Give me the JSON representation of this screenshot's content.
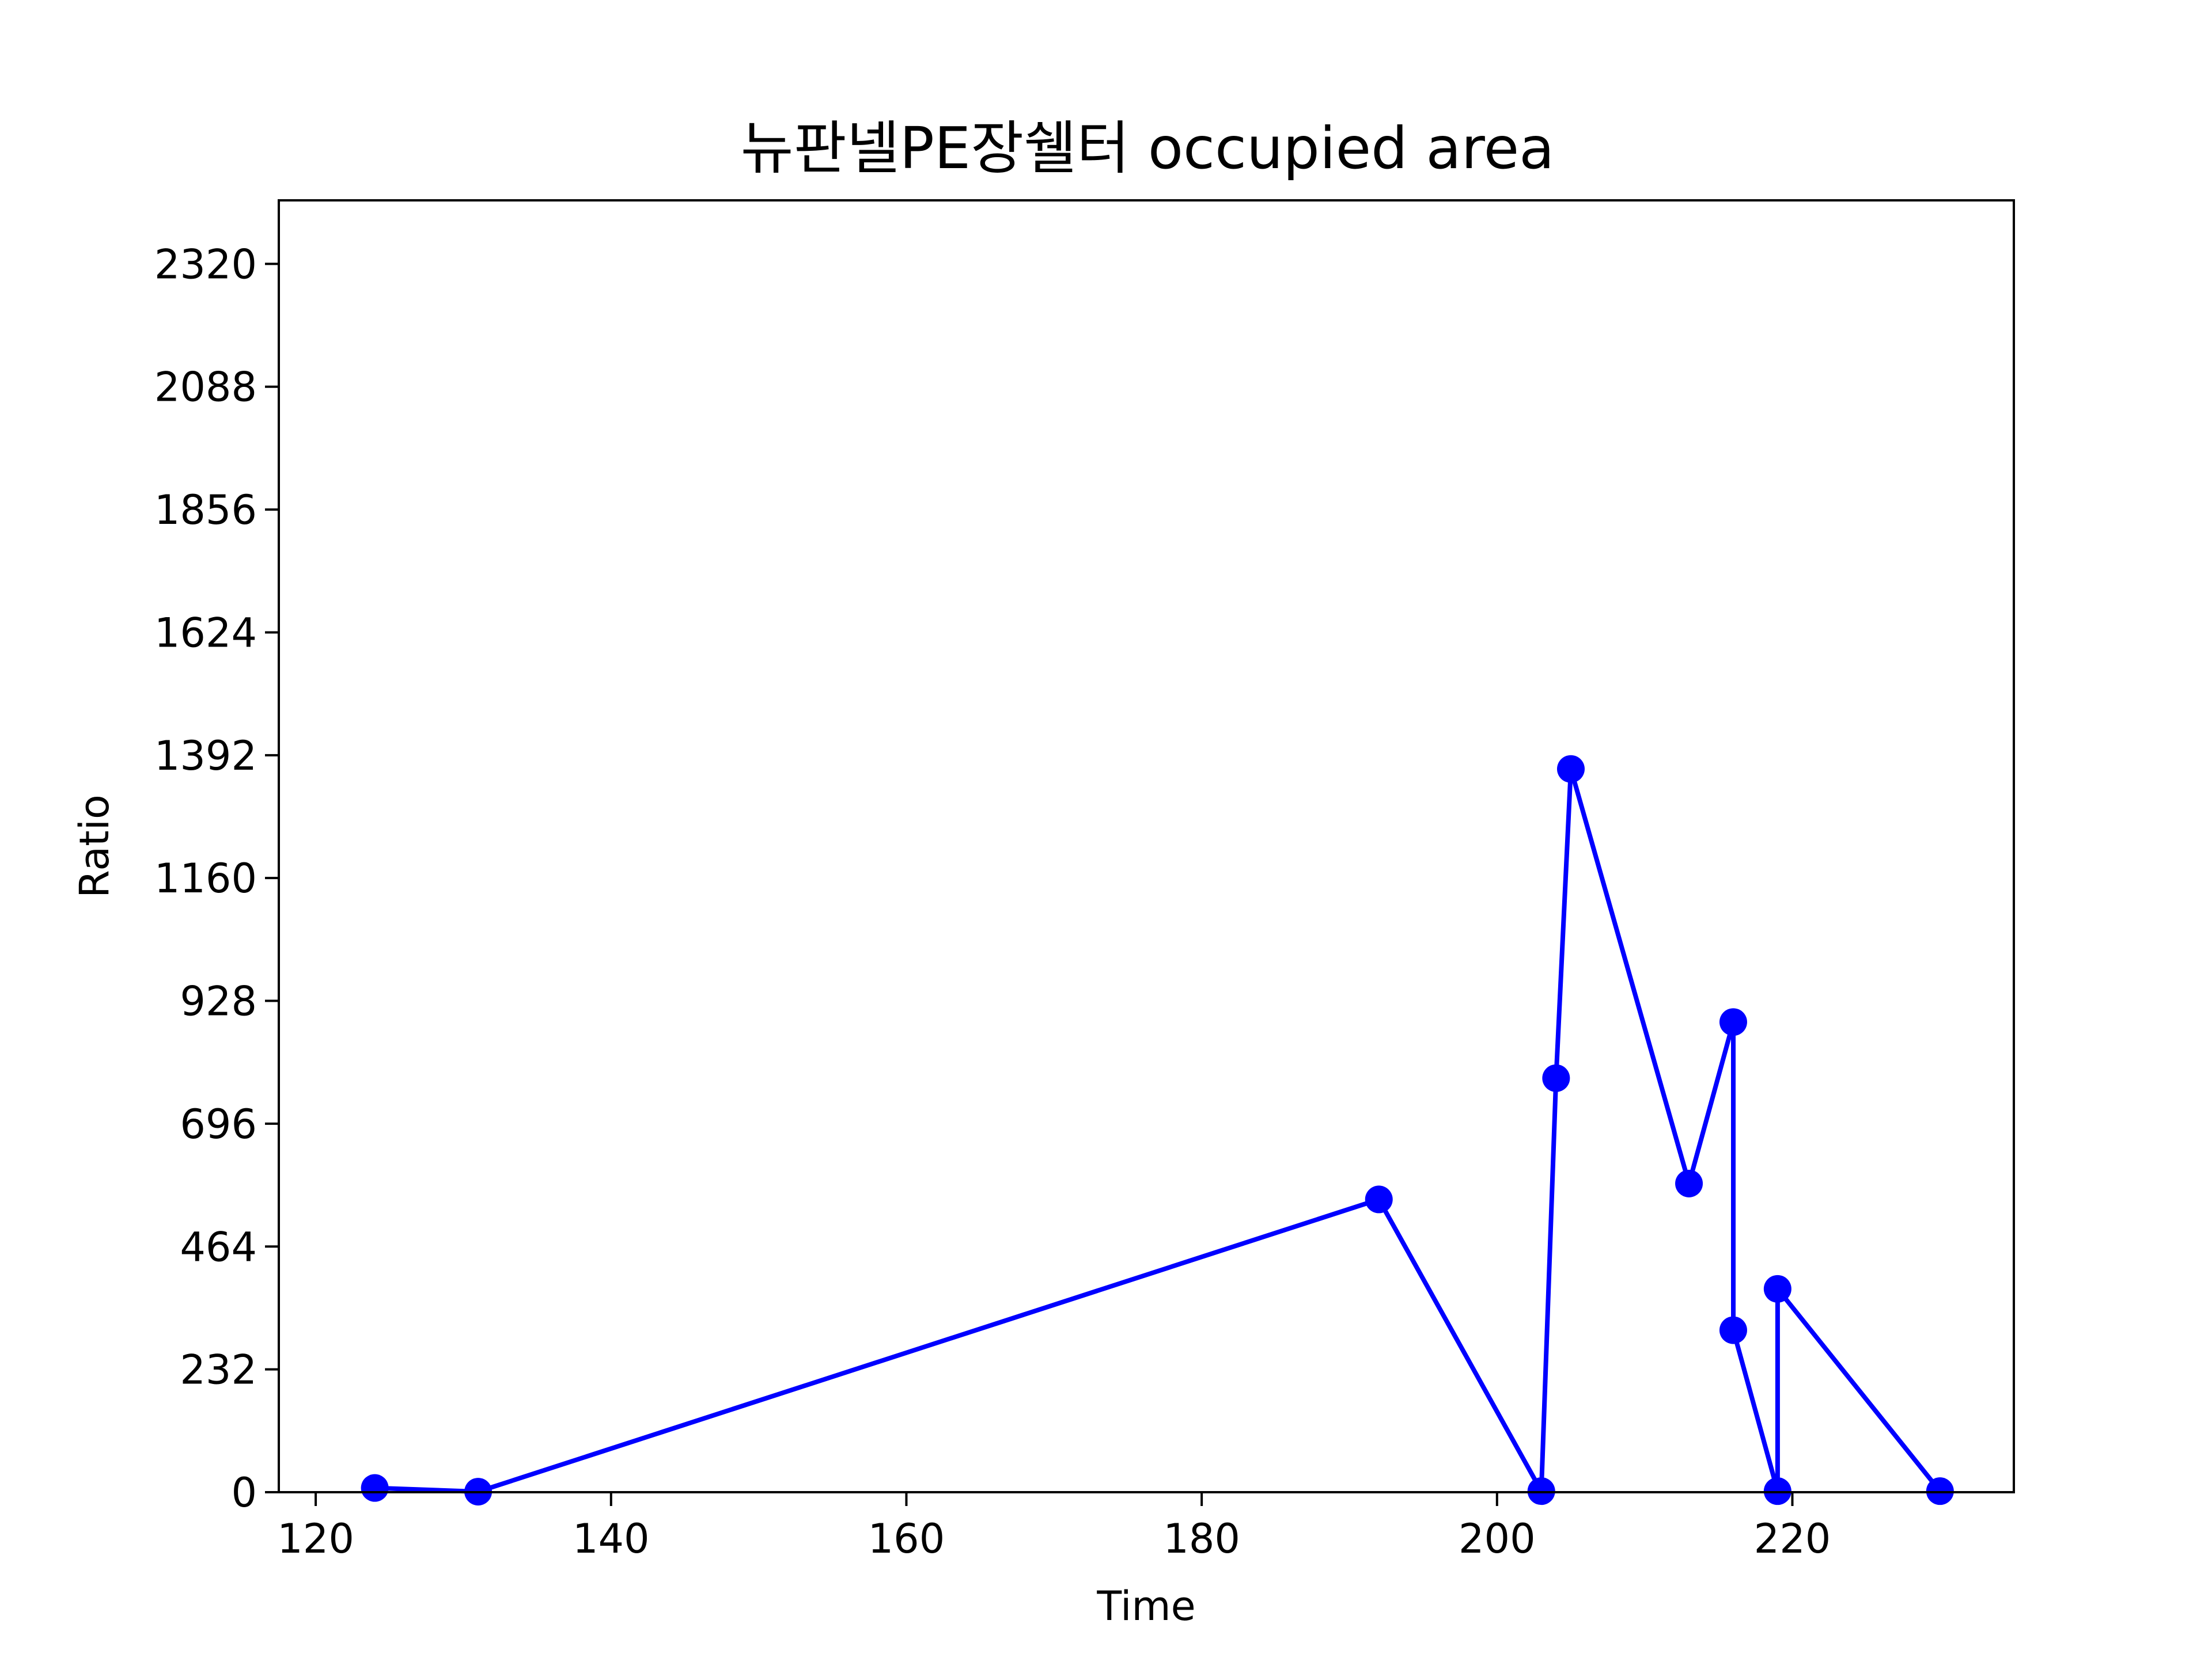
{
  "chart_data": {
    "type": "line",
    "title": "뉴판넬PE장쉘터 occupied area",
    "xlabel": "Time",
    "ylabel": "Ratio",
    "xlim": [
      117.5,
      235
    ],
    "ylim": [
      0,
      2440
    ],
    "x_ticks": [
      120,
      140,
      160,
      180,
      200,
      220
    ],
    "y_ticks": [
      0,
      232,
      464,
      696,
      928,
      1160,
      1392,
      1624,
      1856,
      2088,
      2320
    ],
    "grid": false,
    "legend": "none",
    "series": [
      {
        "color": "#0000ff",
        "marker": "circle",
        "points": [
          {
            "x": 124,
            "y": 8
          },
          {
            "x": 131,
            "y": 1
          },
          {
            "x": 192,
            "y": 553
          },
          {
            "x": 203,
            "y": 2
          },
          {
            "x": 204,
            "y": 782
          },
          {
            "x": 205,
            "y": 1366
          },
          {
            "x": 213,
            "y": 583
          },
          {
            "x": 216,
            "y": 888
          },
          {
            "x": 216,
            "y": 306
          },
          {
            "x": 219,
            "y": 2
          },
          {
            "x": 219,
            "y": 384
          },
          {
            "x": 230,
            "y": 2
          }
        ]
      }
    ]
  }
}
